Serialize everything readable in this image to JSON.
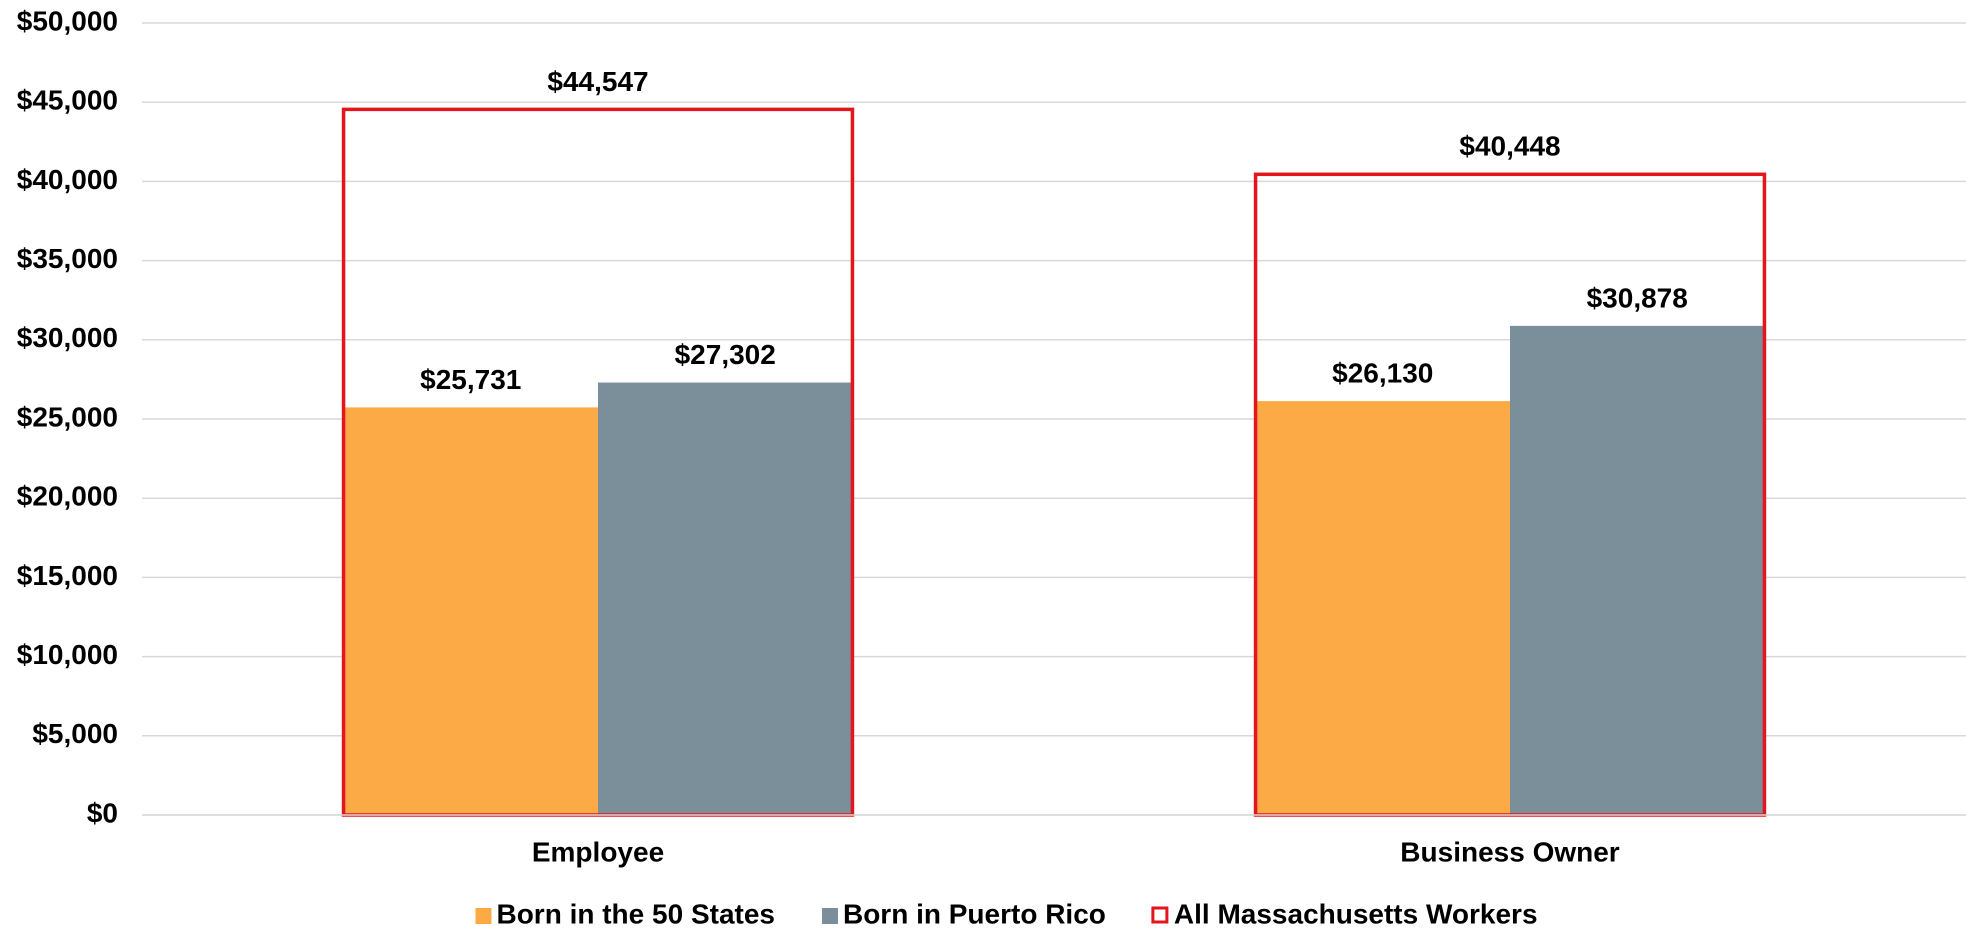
{
  "chart_data": {
    "type": "bar",
    "categories": [
      "Employee",
      "Business Owner"
    ],
    "series": [
      {
        "name": "Born in the 50 States",
        "color": "#fbaa45",
        "style": "fill",
        "values": [
          25731,
          26130
        ],
        "value_labels": [
          "$25,731",
          "$26,130"
        ]
      },
      {
        "name": "Born in Puerto Rico",
        "color": "#7b8f9a",
        "style": "fill",
        "values": [
          27302,
          30878
        ],
        "value_labels": [
          "$27,302",
          "$30,878"
        ]
      },
      {
        "name": "All Massachusetts Workers",
        "color": "#e3161b",
        "style": "outline",
        "values": [
          44547,
          40448
        ],
        "value_labels": [
          "$44,547",
          "$40,448"
        ]
      }
    ],
    "ylim": [
      0,
      50000
    ],
    "yticks": [
      {
        "value": 0,
        "label": "$0"
      },
      {
        "value": 5000,
        "label": "$5,000"
      },
      {
        "value": 10000,
        "label": "$10,000"
      },
      {
        "value": 15000,
        "label": "$15,000"
      },
      {
        "value": 20000,
        "label": "$20,000"
      },
      {
        "value": 25000,
        "label": "$25,000"
      },
      {
        "value": 30000,
        "label": "$30,000"
      },
      {
        "value": 35000,
        "label": "$35,000"
      },
      {
        "value": 40000,
        "label": "$40,000"
      },
      {
        "value": 45000,
        "label": "$45,000"
      },
      {
        "value": 50000,
        "label": "$50,000"
      }
    ],
    "grid": true,
    "legend": "bottom"
  }
}
